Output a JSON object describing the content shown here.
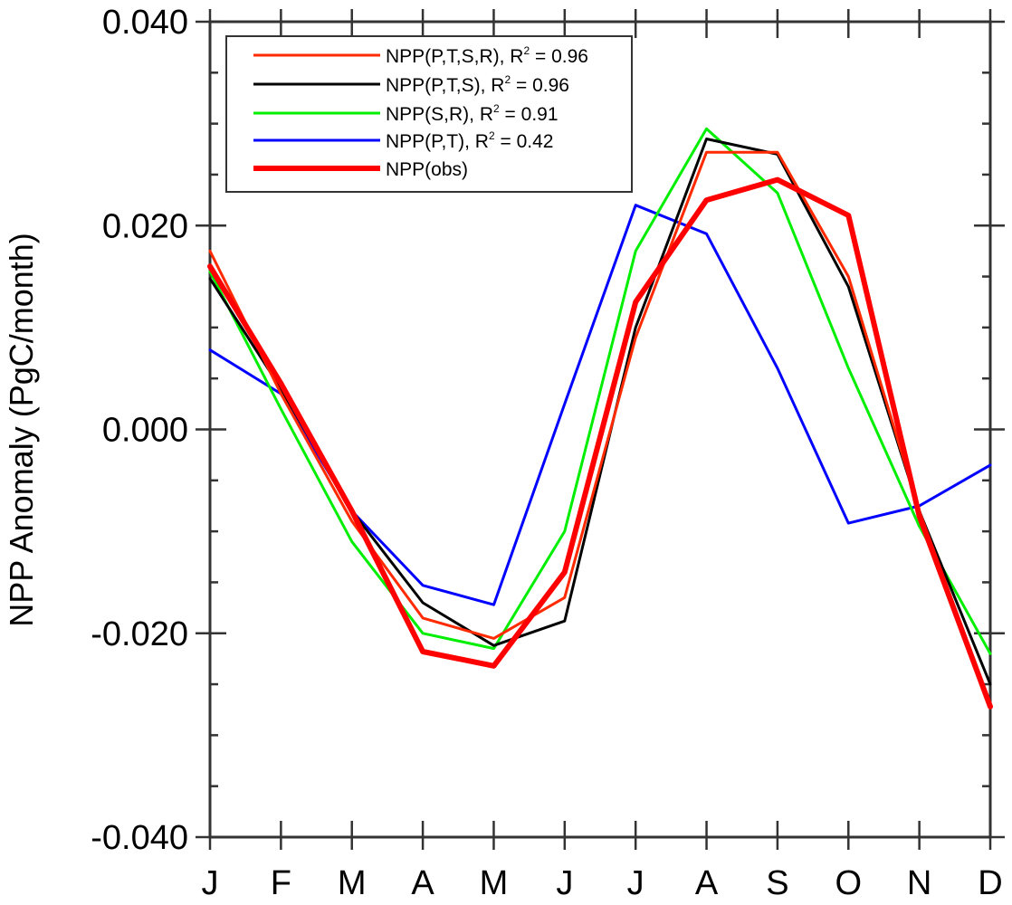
{
  "chart_data": {
    "type": "line",
    "title": "",
    "xlabel": "",
    "ylabel": "NPP Anomaly (PgC/month)",
    "categories": [
      "J",
      "F",
      "M",
      "A",
      "M",
      "J",
      "J",
      "A",
      "S",
      "O",
      "N",
      "D"
    ],
    "ylim": [
      -0.04,
      0.04
    ],
    "yticks": [
      -0.04,
      -0.02,
      0.0,
      0.02,
      0.04
    ],
    "ytick_labels": [
      "-0.040",
      "-0.020",
      "0.000",
      "0.020",
      "0.040"
    ],
    "grid": false,
    "legend_position": "top-left",
    "series": [
      {
        "name": "NPP(P,T,S,R), R",
        "r2_value": "0.96",
        "color": "#ff2a00",
        "line_weight": "thin",
        "values": [
          0.0175,
          0.0035,
          -0.009,
          -0.0185,
          -0.0205,
          -0.0165,
          0.009,
          0.0272,
          0.0272,
          0.015,
          -0.008,
          -0.027
        ]
      },
      {
        "name": "NPP(P,T,S), R",
        "r2_value": "0.96",
        "color": "#000000",
        "line_weight": "thin",
        "values": [
          0.0148,
          0.004,
          -0.008,
          -0.017,
          -0.0212,
          -0.0188,
          0.01,
          0.0285,
          0.027,
          0.014,
          -0.008,
          -0.025
        ]
      },
      {
        "name": "NPP(S,R), R",
        "r2_value": "0.91",
        "color": "#00ee00",
        "line_weight": "thin",
        "values": [
          0.0155,
          0.002,
          -0.011,
          -0.02,
          -0.0215,
          -0.01,
          0.0175,
          0.0295,
          0.0232,
          0.006,
          -0.0095,
          -0.022
        ]
      },
      {
        "name": "NPP(P,T), R",
        "r2_value": "0.42",
        "color": "#0000ff",
        "line_weight": "thin",
        "values": [
          0.0078,
          0.0035,
          -0.008,
          -0.0153,
          -0.0172,
          0.0025,
          0.022,
          0.0192,
          0.006,
          -0.0092,
          -0.0075,
          -0.0035
        ]
      },
      {
        "name": "NPP(obs)",
        "r2_value": "",
        "color": "#ff0000",
        "line_weight": "thick",
        "values": [
          0.016,
          0.0045,
          -0.008,
          -0.0218,
          -0.0232,
          -0.014,
          0.0125,
          0.0225,
          0.0245,
          0.021,
          -0.0085,
          -0.0272
        ]
      }
    ]
  }
}
